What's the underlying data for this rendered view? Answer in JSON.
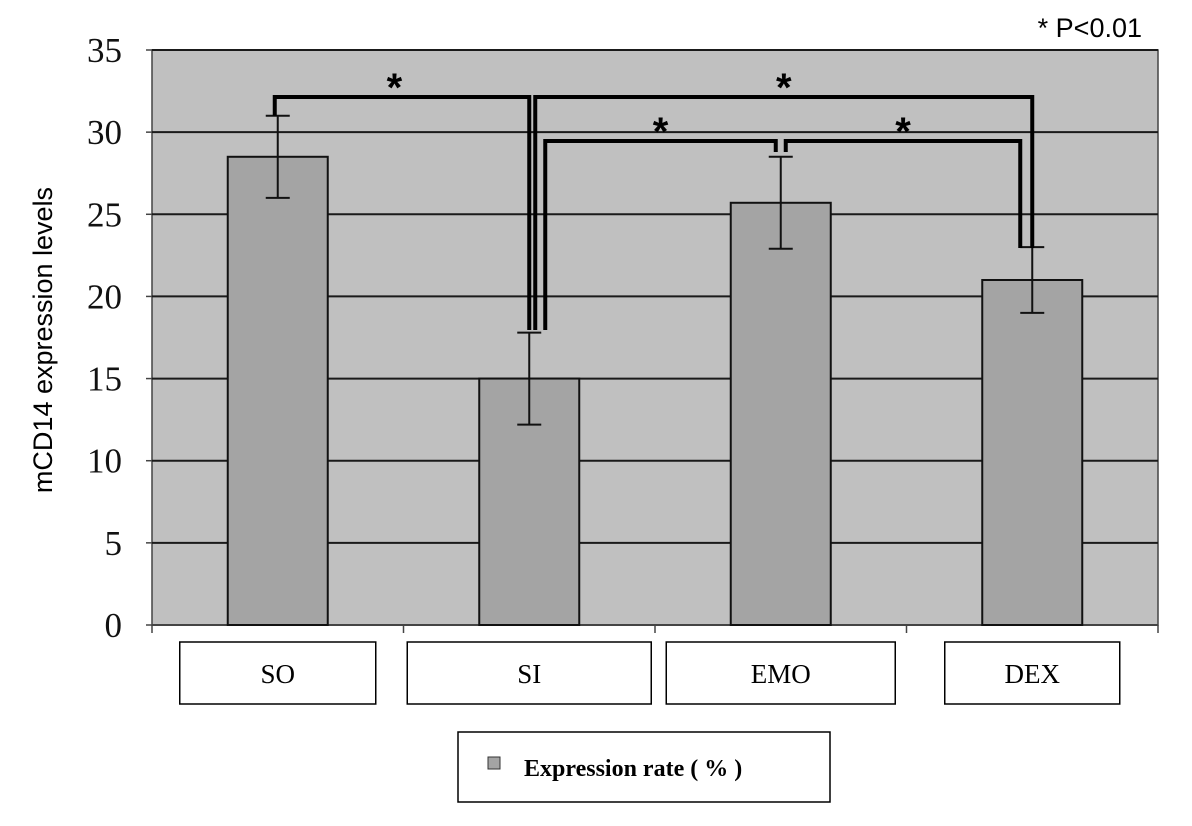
{
  "chart_data": {
    "type": "bar",
    "title": "",
    "xlabel": "",
    "ylabel": "mCD14 expression levels",
    "ylim": [
      0,
      35
    ],
    "yticks": [
      0,
      5,
      10,
      15,
      20,
      25,
      30,
      35
    ],
    "ytick_labels": [
      "0",
      "5",
      "10",
      "15",
      "20",
      "25",
      "30",
      "35"
    ],
    "categories": [
      "SO",
      "SI",
      "EMO",
      "DEX"
    ],
    "series": [
      {
        "name": "Expression rate ( % )",
        "values": [
          28.5,
          15.0,
          25.7,
          21.0
        ],
        "error": [
          2.5,
          2.8,
          2.8,
          2.0
        ],
        "color": "#a4a4a4"
      }
    ],
    "plot_background": "#c0c0c0",
    "grid": true,
    "legend_position": "bottom",
    "significance_note": "* P<0.01",
    "significance": [
      {
        "from": "SO",
        "to": "SI",
        "label": "*"
      },
      {
        "from": "SI",
        "to": "DEX",
        "label": "*"
      },
      {
        "from": "SI",
        "to": "EMO",
        "label": "*"
      },
      {
        "from": "EMO",
        "to": "DEX",
        "label": "*"
      }
    ]
  }
}
